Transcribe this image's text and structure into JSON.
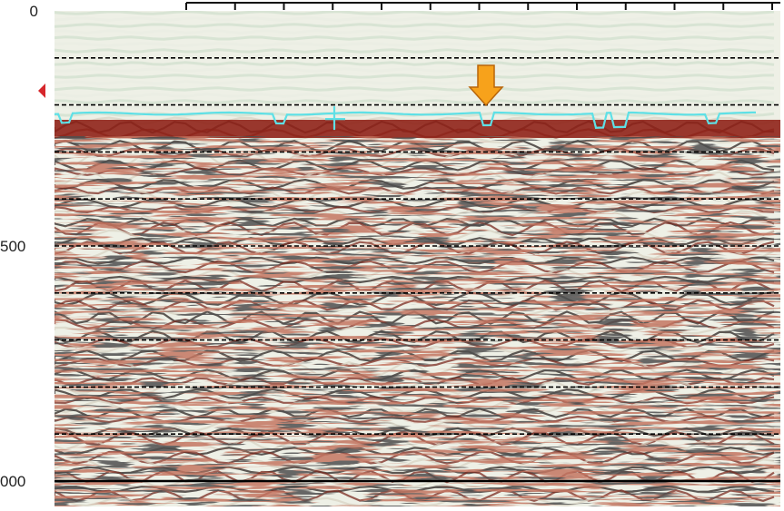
{
  "chart_data": {
    "type": "heatmap",
    "title": "",
    "xlabel": "",
    "ylabel": "",
    "y_tick_labels": [
      "0",
      "500",
      "000"
    ],
    "y_range": [
      0,
      1000
    ],
    "y_gridlines": [
      100,
      200,
      300,
      400,
      500,
      600,
      700,
      800,
      900,
      1000
    ],
    "solid_gridline": 1000,
    "top_axis_ticks": 13,
    "seabed_pick": {
      "color": "#5ee0e6",
      "approx_depth": 230
    },
    "marker_arrow": {
      "color": "#f7a21b",
      "points_to": "seabed pick"
    },
    "left_marker": {
      "color": "#d6262b",
      "approx_depth": 170
    },
    "grid": true
  }
}
